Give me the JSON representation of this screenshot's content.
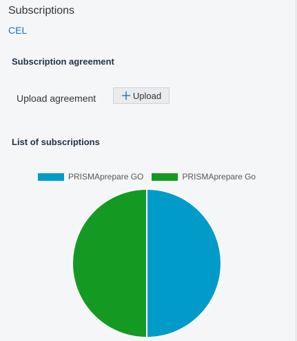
{
  "header": {
    "title": "Subscriptions",
    "breadcrumb": "CEL"
  },
  "agreement": {
    "section_title": "Subscription agreement",
    "upload_label": "Upload agreement",
    "upload_button": "Upload",
    "upload_icon": "plus-icon"
  },
  "subscriptions": {
    "section_title": "List of subscriptions"
  },
  "colors": {
    "series_1": "#009bc9",
    "series_2": "#149a23",
    "link": "#1a73b8"
  },
  "chart_data": {
    "type": "pie",
    "title": "",
    "legend": "top",
    "categories": [
      "PRISMAprepare GO",
      "PRISMAprepare Go"
    ],
    "values": [
      50,
      50
    ],
    "colors": [
      "#009bc9",
      "#149a23"
    ]
  }
}
